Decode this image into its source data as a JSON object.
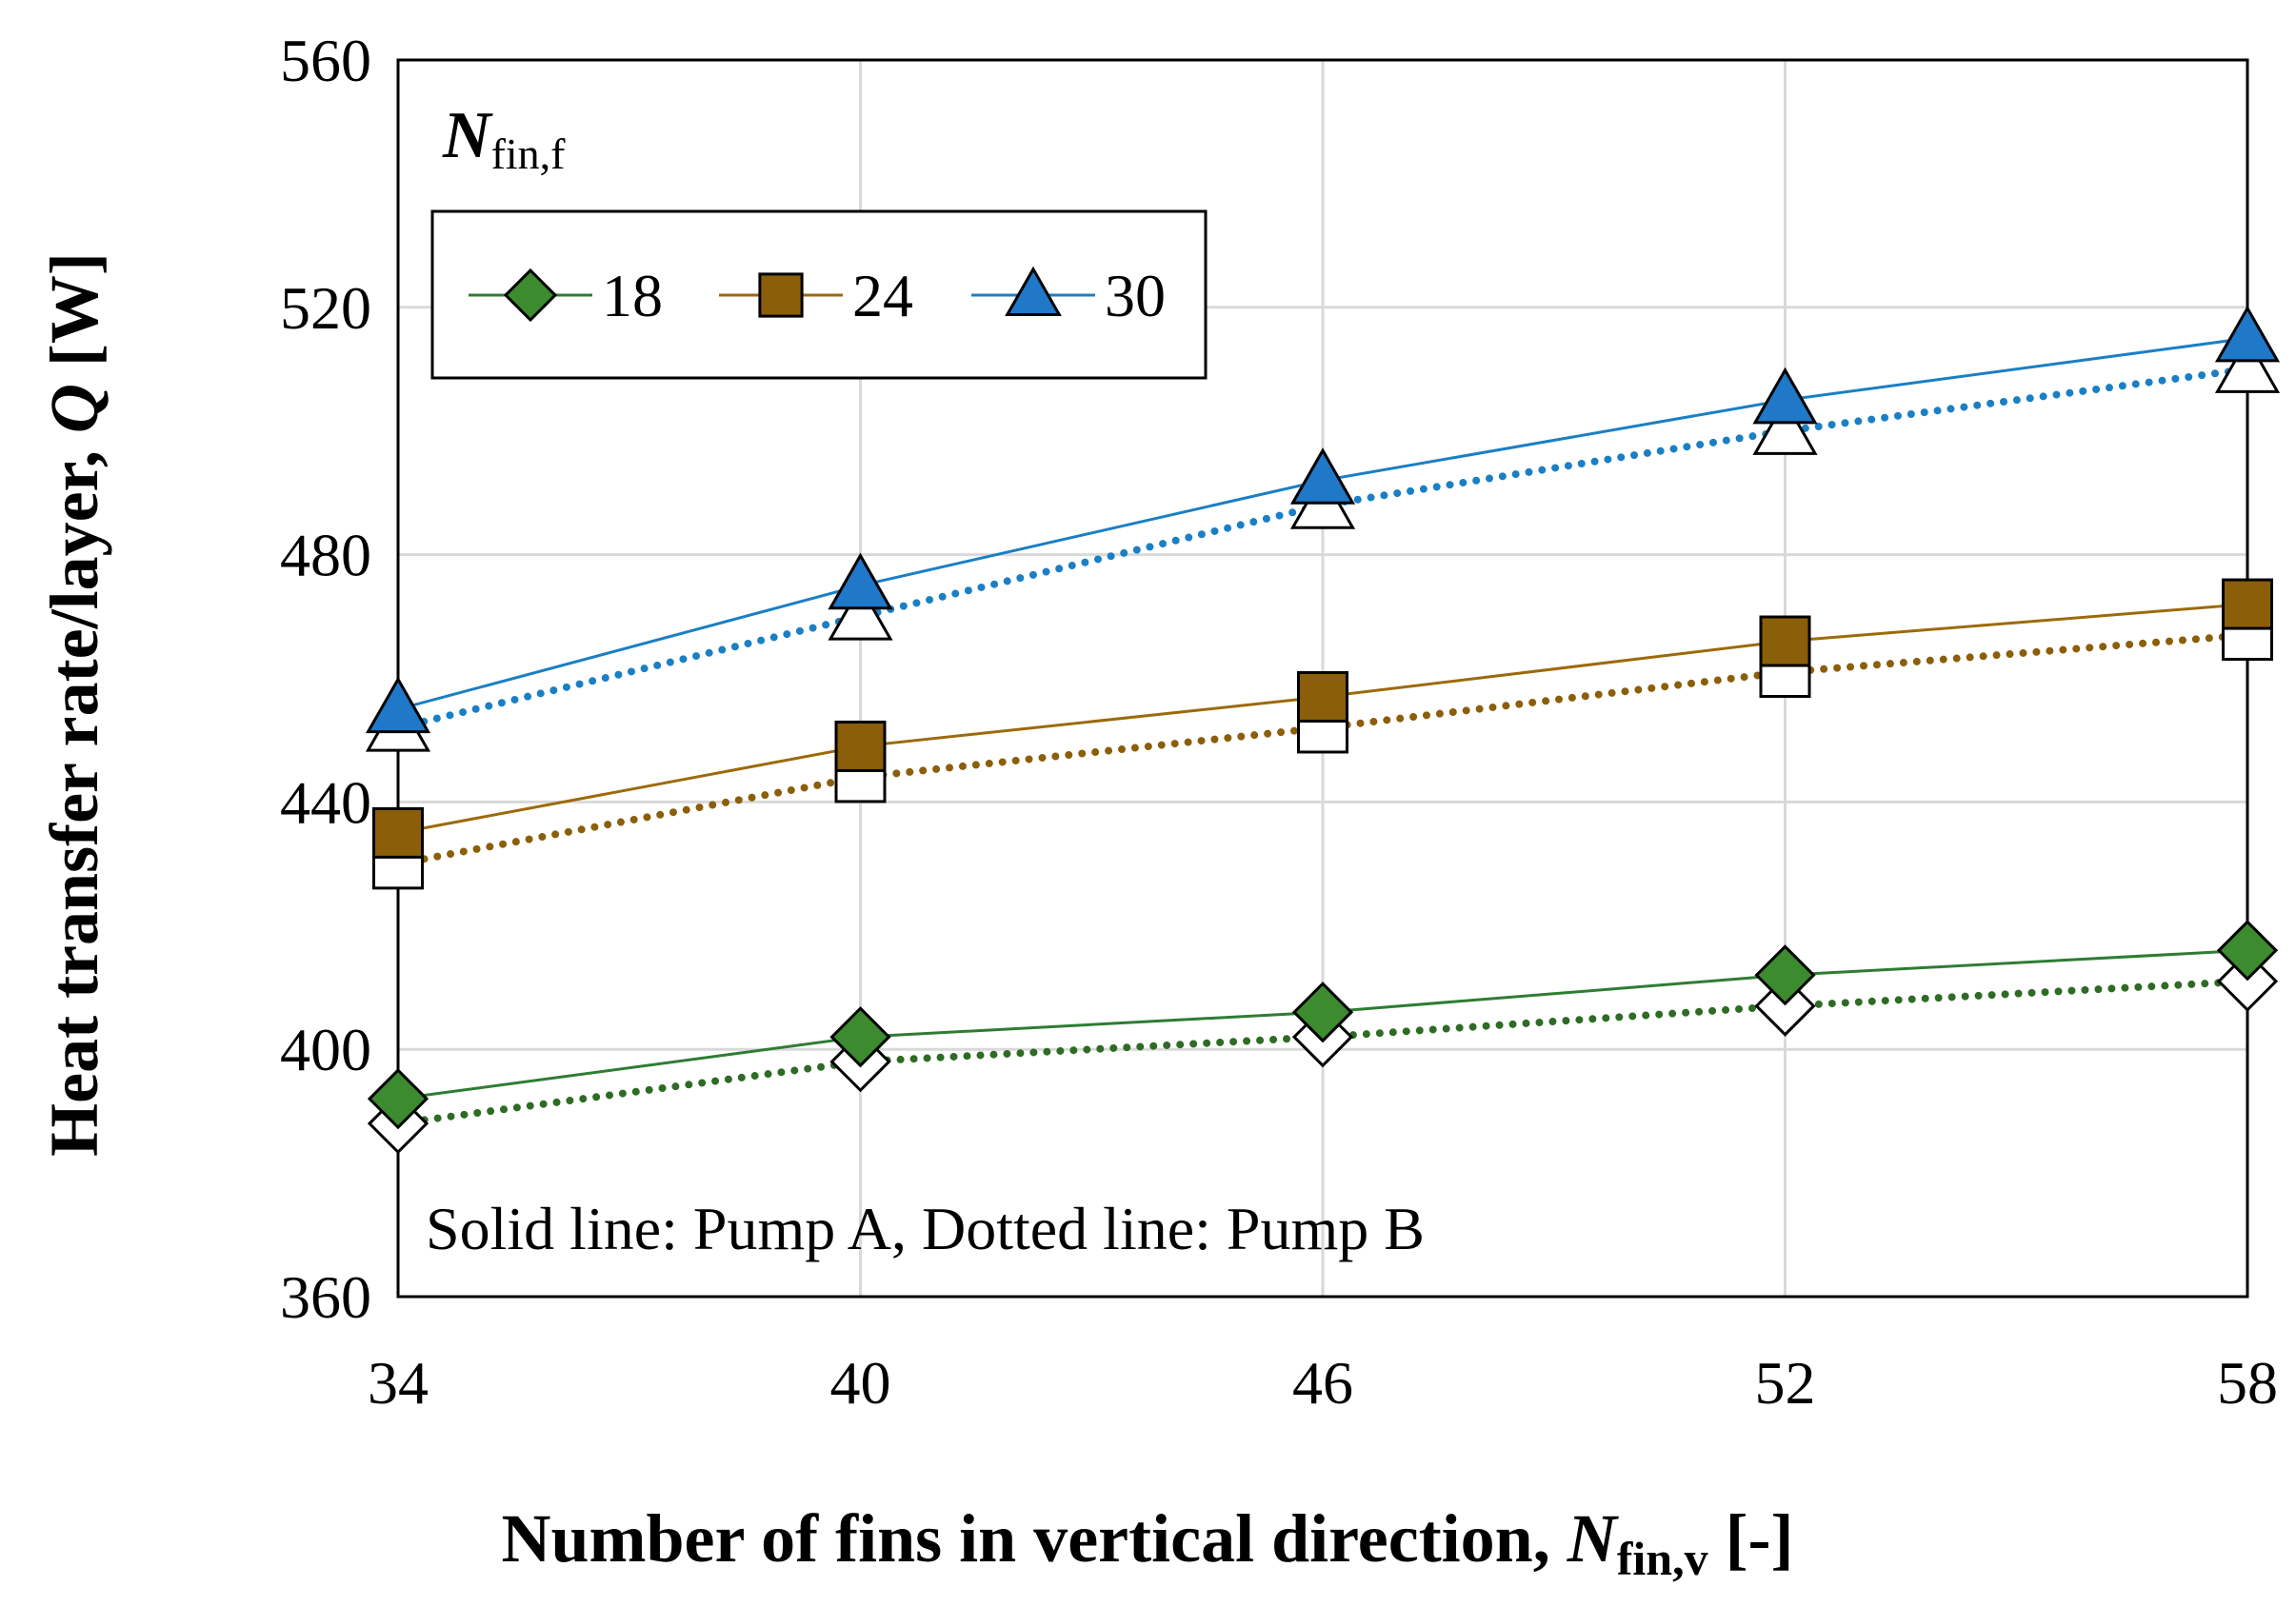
{
  "chart_data": {
    "type": "line",
    "xlabel": {
      "main": "Number of fins in vertical direction, ",
      "var": "N",
      "sub": "fin,v",
      "tail": " [-]"
    },
    "ylabel": {
      "main": "Heat transfer rate/layer, ",
      "var": "Q",
      "tail": " [W]"
    },
    "x": [
      34,
      40,
      46,
      52,
      58
    ],
    "x_ticks": [
      "34",
      "40",
      "46",
      "52",
      "58"
    ],
    "ylim": [
      360,
      560
    ],
    "y_ticks": [
      "360",
      "400",
      "440",
      "480",
      "520",
      "560"
    ],
    "grid": true,
    "legend": {
      "title_var": "N",
      "title_sub": "fin,f",
      "placement": "top-left",
      "entries": [
        "18",
        "24",
        "30"
      ]
    },
    "annotation": "Solid line: Pump A, Dotted line: Pump B",
    "series": [
      {
        "name": "18",
        "pump": "A",
        "line": "solid",
        "marker": "diamond",
        "filled": true,
        "color": "#2e7d32",
        "markerFill": "#3d8b2f",
        "values": [
          392,
          402,
          406,
          412,
          416
        ]
      },
      {
        "name": "24",
        "pump": "A",
        "line": "solid",
        "marker": "square",
        "filled": true,
        "color": "#9c6a0a",
        "markerFill": "#8b5e0a",
        "values": [
          435,
          449,
          457,
          466,
          472
        ]
      },
      {
        "name": "30",
        "pump": "A",
        "line": "solid",
        "marker": "triangle",
        "filled": true,
        "color": "#1a7fc4",
        "markerFill": "#1f78c8",
        "values": [
          455,
          475,
          492,
          505,
          515
        ]
      },
      {
        "name": "18",
        "pump": "B",
        "line": "dotted",
        "marker": "diamond",
        "filled": false,
        "color": "#2e6b24",
        "values": [
          388,
          398,
          402,
          407,
          411
        ]
      },
      {
        "name": "24",
        "pump": "B",
        "line": "dotted",
        "marker": "square",
        "filled": false,
        "color": "#8b5e0a",
        "values": [
          430,
          444,
          452,
          461,
          467
        ]
      },
      {
        "name": "30",
        "pump": "B",
        "line": "dotted",
        "marker": "triangle",
        "filled": false,
        "color": "#1a7fc4",
        "values": [
          452,
          470,
          488,
          500,
          510
        ]
      }
    ]
  }
}
